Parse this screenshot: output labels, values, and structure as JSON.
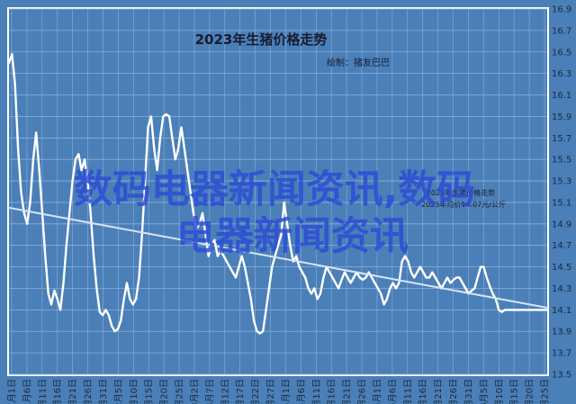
{
  "chart_data": {
    "type": "line",
    "title": "2023年生猪价格走势",
    "subtitle": "绘制：猪友巴巴",
    "annotation_lines": [
      "2023年生猪价格走势",
      "2023年均价14.07元/公斤"
    ],
    "ylim": [
      13.5,
      16.9
    ],
    "yticks": [
      "16.9",
      "16.7",
      "16.5",
      "16.3",
      "16.1",
      "15.9",
      "15.7",
      "15.5",
      "15.3",
      "15.1",
      "14.9",
      "14.7",
      "14.5",
      "14.3",
      "14.1",
      "13.9",
      "13.7",
      "13.5"
    ],
    "xticks": [
      "1月1日",
      "1月6日",
      "1月11日",
      "1月16日",
      "1月21日",
      "1月26日",
      "1月31日",
      "2月5日",
      "2月10日",
      "2月15日",
      "2月20日",
      "2月25日",
      "3月2日",
      "3月7日",
      "3月12日",
      "3月17日",
      "3月22日",
      "3月27日",
      "4月1日",
      "4月6日",
      "4月11日",
      "4月16日",
      "4月21日",
      "4月26日",
      "5月1日",
      "5月6日",
      "5月11日",
      "5月16日",
      "5月21日",
      "5月26日",
      "5月31日",
      "6月5日",
      "6月10日",
      "6月15日",
      "6月20日",
      "6月25日"
    ],
    "x_range": [
      0,
      178
    ],
    "grid": true,
    "series": [
      {
        "name": "",
        "color": "#ffffff",
        "x": [
          0,
          1,
          2,
          3,
          4,
          5,
          6,
          7,
          8,
          9,
          10,
          11,
          12,
          13,
          14,
          15,
          16,
          17,
          18,
          19,
          20,
          21,
          22,
          23,
          24,
          25,
          26,
          27,
          28,
          29,
          30,
          31,
          32,
          33,
          34,
          35,
          36,
          37,
          38,
          39,
          40,
          41,
          42,
          43,
          44,
          45,
          46,
          47,
          48,
          49,
          50,
          51,
          52,
          53,
          54,
          55,
          56,
          57,
          58,
          59,
          60,
          61,
          62,
          63,
          64,
          65,
          66,
          67,
          68,
          69,
          70,
          71,
          72,
          73,
          74,
          75,
          76,
          77,
          78,
          79,
          80,
          81,
          82,
          83,
          84,
          85,
          86,
          87,
          88,
          89,
          90,
          91,
          92,
          93,
          94,
          95,
          96,
          97,
          98,
          99,
          100,
          101,
          102,
          103,
          104,
          105,
          106,
          107,
          108,
          109,
          110,
          111,
          112,
          113,
          114,
          115,
          116,
          117,
          118,
          119,
          120,
          121,
          122,
          123,
          124,
          125,
          126,
          127,
          128,
          129,
          130,
          131,
          132,
          133,
          134,
          135,
          136,
          137,
          138,
          139,
          140,
          141,
          142,
          143,
          144,
          145,
          146,
          147,
          148,
          149,
          150,
          151,
          152,
          153,
          154,
          155,
          156,
          157,
          158,
          159,
          160,
          161,
          162,
          163,
          164,
          165,
          166,
          167,
          168,
          169,
          170,
          171,
          172,
          173,
          174,
          175,
          176,
          177,
          178
        ],
        "values": [
          16.4,
          16.48,
          16.2,
          15.6,
          15.2,
          15.0,
          14.9,
          15.1,
          15.5,
          15.75,
          15.4,
          15.0,
          14.6,
          14.25,
          14.15,
          14.28,
          14.2,
          14.1,
          14.35,
          14.7,
          15.0,
          15.3,
          15.5,
          15.55,
          15.4,
          15.5,
          15.3,
          15.0,
          14.6,
          14.3,
          14.08,
          14.05,
          14.1,
          14.05,
          13.95,
          13.9,
          13.92,
          14.0,
          14.2,
          14.35,
          14.2,
          14.15,
          14.2,
          14.4,
          14.8,
          15.3,
          15.8,
          15.9,
          15.6,
          15.4,
          15.7,
          15.9,
          15.92,
          15.9,
          15.7,
          15.5,
          15.6,
          15.8,
          15.6,
          15.4,
          15.2,
          15.0,
          14.85,
          14.9,
          15.0,
          14.8,
          14.6,
          14.7,
          14.75,
          14.6,
          14.65,
          14.6,
          14.55,
          14.5,
          14.45,
          14.4,
          14.5,
          14.6,
          14.5,
          14.35,
          14.2,
          14.0,
          13.9,
          13.88,
          13.9,
          14.1,
          14.3,
          14.5,
          14.6,
          14.7,
          14.8,
          15.1,
          14.9,
          14.7,
          14.55,
          14.6,
          14.5,
          14.45,
          14.4,
          14.3,
          14.25,
          14.3,
          14.2,
          14.25,
          14.4,
          14.5,
          14.45,
          14.4,
          14.35,
          14.3,
          14.38,
          14.45,
          14.4,
          14.35,
          14.4,
          14.45,
          14.4,
          14.38,
          14.4,
          14.45,
          14.4,
          14.35,
          14.3,
          14.25,
          14.15,
          14.2,
          14.3,
          14.35,
          14.3,
          14.35,
          14.55,
          14.6,
          14.55,
          14.45,
          14.4,
          14.45,
          14.5,
          14.45,
          14.4,
          14.4,
          14.45,
          14.4,
          14.35,
          14.3,
          14.35,
          14.4,
          14.35,
          14.38,
          14.4,
          14.4,
          14.35,
          14.3,
          14.25,
          14.28,
          14.3,
          14.4,
          14.5,
          14.5,
          14.4,
          14.32,
          14.25,
          14.2,
          14.1,
          14.08,
          14.1,
          14.1,
          14.1,
          14.1,
          14.1,
          14.1,
          14.1,
          14.1,
          14.1,
          14.1,
          14.1,
          14.1,
          14.1,
          14.1,
          14.1
        ]
      },
      {
        "name": "",
        "color": "#d8e4f4",
        "trend": true,
        "x": [
          0,
          178
        ],
        "values": [
          15.05,
          14.12
        ]
      }
    ]
  },
  "watermark": {
    "line1": "数码电器新闻资讯,数码",
    "line2": "电器新闻资讯"
  }
}
